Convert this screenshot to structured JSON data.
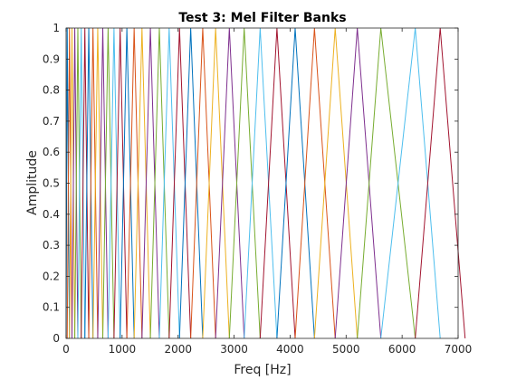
{
  "chart_data": {
    "type": "line",
    "title": "Test 3: Mel Filter Banks",
    "xlabel": "Freq [Hz]",
    "ylabel": "Amplitude",
    "xlim": [
      0,
      7000
    ],
    "ylim": [
      0,
      1
    ],
    "xticks": [
      0,
      1000,
      2000,
      3000,
      4000,
      5000,
      6000,
      7000
    ],
    "xtick_labels": [
      "0",
      "1000",
      "2000",
      "3000",
      "4000",
      "5000",
      "6000",
      "7000"
    ],
    "yticks": [
      0,
      0.1,
      0.2,
      0.3,
      0.4,
      0.5,
      0.6,
      0.7,
      0.8,
      0.9,
      1
    ],
    "ytick_labels": [
      "0",
      "0.1",
      "0.2",
      "0.3",
      "0.4",
      "0.5",
      "0.6",
      "0.7",
      "0.8",
      "0.9",
      "1"
    ],
    "grid": false,
    "legend": "none",
    "filter_centers_hz": [
      20,
      60,
      105,
      155,
      210,
      270,
      335,
      405,
      480,
      565,
      655,
      750,
      855,
      965,
      1085,
      1215,
      1355,
      1505,
      1665,
      1840,
      2025,
      2225,
      2440,
      2670,
      2915,
      3180,
      3465,
      3765,
      4090,
      4435,
      4805,
      5200,
      5620,
      6235,
      6680
    ],
    "peak_amplitude": 1,
    "colors": [
      "#0072bd",
      "#d95319",
      "#edb120",
      "#7e2f8e",
      "#77ac30",
      "#4dbeee",
      "#a2142f"
    ]
  }
}
